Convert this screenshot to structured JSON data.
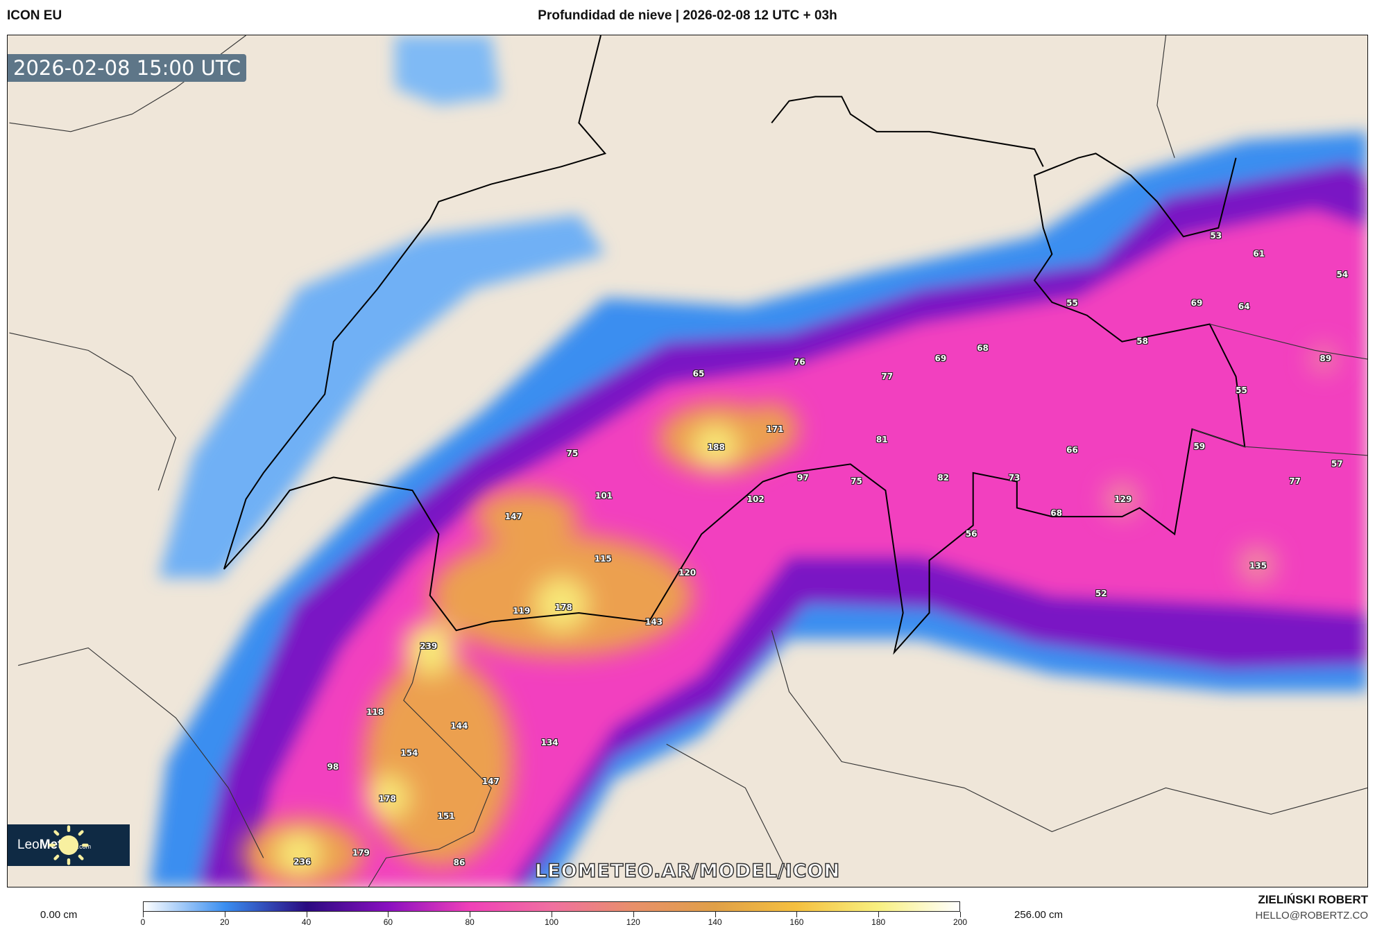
{
  "header": {
    "model": "ICON EU",
    "title": "Profundidad de nieve | 2026-02-08 12 UTC + 03h"
  },
  "map": {
    "valid_time": "2026-02-08 15:00 UTC",
    "watermark": "LEOMETEO.AR/MODEL/ICON",
    "logo": {
      "pre": "Leo",
      "bold": "Meteo",
      "suffix": ".com"
    },
    "background_color": "#efe6d9",
    "snow_depth_labels": [
      "53",
      "61",
      "54",
      "55",
      "69",
      "64",
      "58",
      "89",
      "68",
      "69",
      "76",
      "65",
      "77",
      "55",
      "171",
      "188",
      "81",
      "66",
      "59",
      "75",
      "57",
      "97",
      "75",
      "82",
      "73",
      "77",
      "101",
      "102",
      "129",
      "147",
      "68",
      "56",
      "115",
      "135",
      "120",
      "52",
      "119",
      "178",
      "143",
      "239",
      "118",
      "144",
      "134",
      "154",
      "98",
      "147",
      "178",
      "151",
      "179",
      "236",
      "86"
    ]
  },
  "colorbar": {
    "min_label": "0.00 cm",
    "max_label": "256.00 cm",
    "ticks": [
      "0",
      "20",
      "40",
      "60",
      "80",
      "100",
      "120",
      "140",
      "160",
      "180",
      "200"
    ],
    "colors": [
      "#ffffff",
      "#3a8ef0",
      "#2a0a80",
      "#8a10c0",
      "#f040b8",
      "#f070a0",
      "#e8906a",
      "#e0a048",
      "#f5c040",
      "#f8f080",
      "#ffffff"
    ]
  },
  "credit": {
    "name": "ZIELIŃSKI ROBERT",
    "email": "HELLO@ROBERTZ.CO"
  }
}
